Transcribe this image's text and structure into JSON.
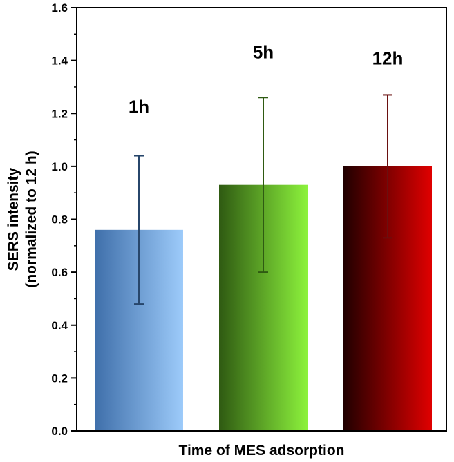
{
  "chart_data": {
    "type": "bar",
    "categories": [
      "1h",
      "5h",
      "12h"
    ],
    "values": [
      0.76,
      0.93,
      1.0
    ],
    "errors": [
      0.28,
      0.33,
      0.27
    ],
    "xlabel": "Time of MES adsorption",
    "ylabel_line1": "SERS intensity",
    "ylabel_line2": "(normalized to 12 h)",
    "ylim": [
      0,
      1.6
    ],
    "yticks": [
      "0.0",
      "0.2",
      "0.4",
      "0.6",
      "0.8",
      "1.0",
      "1.2",
      "1.4",
      "1.6"
    ],
    "grid": false,
    "legend": "none",
    "bar_colors": [
      {
        "from": "#3f6faa",
        "to": "#9dcbfa",
        "error": "#27466b"
      },
      {
        "from": "#2f5a12",
        "to": "#8cf23c",
        "error": "#2f5a12"
      },
      {
        "from": "#200000",
        "to": "#e00000",
        "error": "#6a1010"
      }
    ]
  }
}
